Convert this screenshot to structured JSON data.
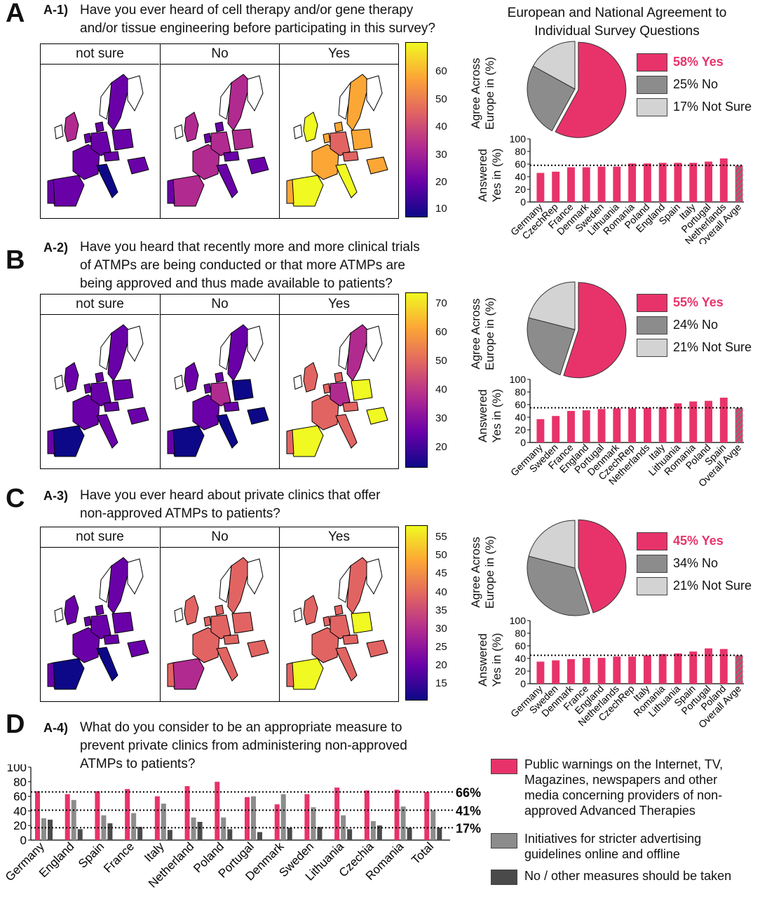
{
  "header": {
    "title_line1": "European and National Agreement to",
    "title_line2": "Individual Survey Questions"
  },
  "colorbar_gradient": [
    "#0d0887",
    "#6a00a8",
    "#b12a90",
    "#e16462",
    "#fca636",
    "#f0f921"
  ],
  "colors": {
    "yes": "#e8336a",
    "no": "#8c8c8c",
    "not_sure": "#d3d3d3",
    "dark": "#4a4a4a",
    "overall_hatch": "#7a7a7a"
  },
  "panels": [
    {
      "letter": "A",
      "tag": "A-1)",
      "question": [
        "Have you ever heard of cell therapy and/or gene therapy",
        "and/or tissue engineering before participating in this survey?"
      ],
      "map_headers": [
        "not sure",
        "No",
        "Yes"
      ],
      "colorbar_ticks": [
        "60",
        "50",
        "40",
        "30",
        "20",
        "10"
      ],
      "pie_ylabel": [
        "Agree Across",
        "Europe in (%)"
      ],
      "legend": [
        "58% Yes",
        "25% No",
        "17% Not Sure"
      ],
      "bar_ylabel": [
        "Answered",
        "Yes in (%)"
      ]
    },
    {
      "letter": "B",
      "tag": "A-2)",
      "question": [
        "Have you heard that recently more and more clinical trials",
        "of ATMPs are being conducted or that more ATMPs are",
        "being approved and thus made available to patients?"
      ],
      "map_headers": [
        "not sure",
        "No",
        "Yes"
      ],
      "colorbar_ticks": [
        "70",
        "60",
        "50",
        "40",
        "30",
        "20"
      ],
      "pie_ylabel": [
        "Agree Across",
        "Europe in (%)"
      ],
      "legend": [
        "55% Yes",
        "24% No",
        "21% Not Sure"
      ],
      "bar_ylabel": [
        "Answered",
        "Yes in (%)"
      ]
    },
    {
      "letter": "C",
      "tag": "A-3)",
      "question": [
        "Have you ever heard about private clinics that offer",
        "non-approved ATMPs to patients?"
      ],
      "map_headers": [
        "not sure",
        "No",
        "Yes"
      ],
      "colorbar_ticks": [
        "55",
        "50",
        "45",
        "40",
        "35",
        "30",
        "25",
        "20",
        "15"
      ],
      "pie_ylabel": [
        "Agree Across",
        "Europe in (%)"
      ],
      "legend": [
        "45% Yes",
        "34% No",
        "21% Not Sure"
      ],
      "bar_ylabel": [
        "Answered",
        "Yes in (%)"
      ]
    }
  ],
  "panelD": {
    "letter": "D",
    "tag": "A-4)",
    "question": [
      "What do you consider to be an appropriate measure to",
      "prevent private clinics from administering non-approved",
      "ATMPs to patients?"
    ],
    "legend": [
      [
        "Public warnings on the Internet, TV,",
        "Magazines, newspapers and other",
        "media concerning providers of non-",
        "approved Advanced Therapies"
      ],
      [
        "Initiatives for stricter advertising",
        "guidelines online and offline"
      ],
      [
        "No / other measures should be taken"
      ]
    ],
    "ref_labels": [
      "66%",
      "41%",
      "17%"
    ]
  },
  "chart_data": [
    {
      "type": "pie",
      "title": "A-1 Agree Across Europe in (%)",
      "labels": [
        "Yes",
        "No",
        "Not Sure"
      ],
      "values": [
        58,
        25,
        17
      ]
    },
    {
      "type": "bar",
      "title": "A-1 Answered Yes in (%)",
      "ylabel": "Answered Yes in (%)",
      "ylim": [
        0,
        100
      ],
      "yticks": [
        0,
        20,
        40,
        60,
        80,
        100
      ],
      "categories": [
        "Germany",
        "CzechRep",
        "France",
        "Denmark",
        "Sweden",
        "Lithuania",
        "Romania",
        "Poland",
        "England",
        "Spain",
        "Italy",
        "Portugal",
        "Netherlands",
        "Overall Avge"
      ],
      "values": [
        46,
        48,
        55,
        55,
        56,
        56,
        61,
        61,
        62,
        62,
        62,
        64,
        69,
        58
      ],
      "reference_line": 58
    },
    {
      "type": "pie",
      "title": "A-2 Agree Across Europe in (%)",
      "labels": [
        "Yes",
        "No",
        "Not Sure"
      ],
      "values": [
        55,
        24,
        21
      ]
    },
    {
      "type": "bar",
      "title": "A-2 Answered Yes in (%)",
      "ylabel": "Answered Yes in (%)",
      "ylim": [
        0,
        100
      ],
      "yticks": [
        0,
        20,
        40,
        60,
        80,
        100
      ],
      "categories": [
        "Germany",
        "Sweden",
        "France",
        "England",
        "Portugal",
        "Denmark",
        "CzechRep",
        "Netherlands",
        "Italy",
        "Lithuania",
        "Romania",
        "Poland",
        "Spain",
        "Overall Avge"
      ],
      "values": [
        37,
        42,
        50,
        51,
        53,
        54,
        54,
        55,
        56,
        62,
        65,
        66,
        71,
        55
      ],
      "reference_line": 55
    },
    {
      "type": "pie",
      "title": "A-3 Agree Across Europe in (%)",
      "labels": [
        "Yes",
        "No",
        "Not Sure"
      ],
      "values": [
        45,
        34,
        21
      ]
    },
    {
      "type": "bar",
      "title": "A-3 Answered Yes in (%)",
      "ylabel": "Answered Yes in (%)",
      "ylim": [
        0,
        100
      ],
      "yticks": [
        0,
        20,
        40,
        60,
        80,
        100
      ],
      "categories": [
        "Germany",
        "Sweden",
        "Denmark",
        "France",
        "England",
        "Netherlands",
        "CzechRep",
        "Italy",
        "Romania",
        "Lithuania",
        "Spain",
        "Portugal",
        "Poland",
        "Overall Avge"
      ],
      "values": [
        35,
        37,
        39,
        41,
        41,
        43,
        43,
        45,
        47,
        48,
        51,
        56,
        55,
        45
      ],
      "reference_line": 45
    },
    {
      "type": "bar",
      "title": "A-4 appropriate measures",
      "ylim": [
        0,
        100
      ],
      "yticks": [
        0,
        20,
        40,
        60,
        80,
        100
      ],
      "categories": [
        "Germany",
        "England",
        "Spain",
        "France",
        "Italy",
        "Netherland",
        "Poland",
        "Portugal",
        "Denmark",
        "Sweden",
        "Lithuania",
        "Czechia",
        "Romania",
        "Total"
      ],
      "series": [
        {
          "name": "Public warnings",
          "values": [
            67,
            63,
            67,
            70,
            60,
            74,
            80,
            59,
            49,
            63,
            72,
            68,
            69,
            66
          ]
        },
        {
          "name": "Stricter advertising guidelines",
          "values": [
            30,
            55,
            34,
            37,
            50,
            31,
            31,
            60,
            63,
            45,
            34,
            26,
            46,
            41
          ]
        },
        {
          "name": "No / other measures",
          "values": [
            28,
            15,
            23,
            18,
            14,
            25,
            15,
            11,
            17,
            18,
            15,
            20,
            17,
            17
          ]
        }
      ],
      "reference_lines": [
        66,
        41,
        17
      ]
    }
  ]
}
